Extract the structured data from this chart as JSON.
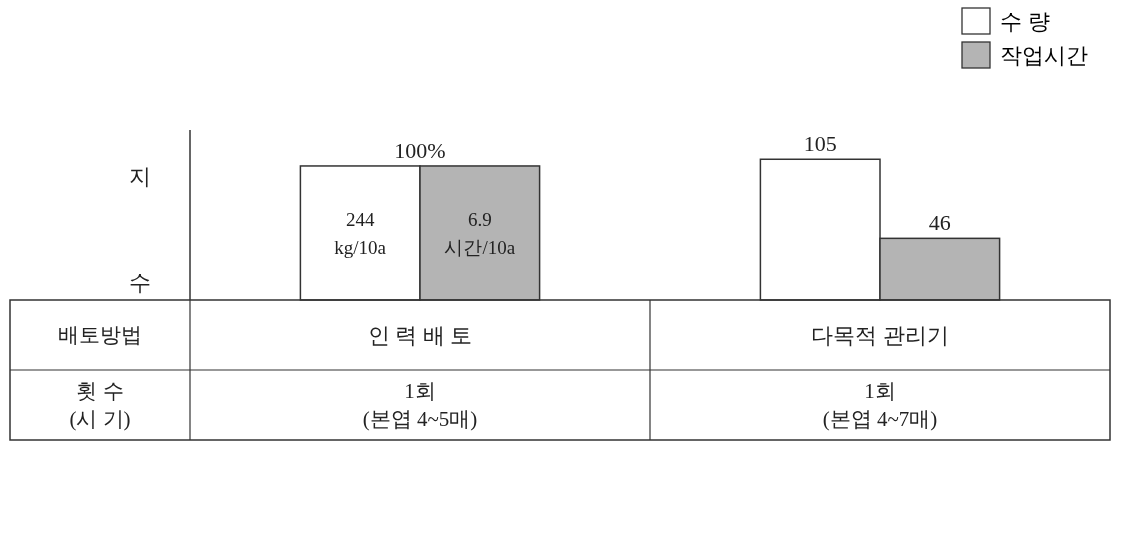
{
  "chart_data": {
    "type": "bar",
    "ylabel": "지 수",
    "xlabel": "배토방법",
    "categories": [
      "인 력 배 토",
      "다목적 관리기"
    ],
    "series": [
      {
        "name": "수 량",
        "color": "#ffffff",
        "values": [
          100,
          105
        ],
        "value_labels": [
          null,
          "105"
        ]
      },
      {
        "name": "작업시간",
        "color": "#b4b4b4",
        "values": [
          100,
          46
        ],
        "value_labels": [
          null,
          "46"
        ]
      }
    ],
    "legend": "top right",
    "annotations": [
      "횟 수\n(시 기)",
      "1회\n(본엽 4~5매)",
      "1회\n(본엽 4~7매)",
      {
        "text": "100%",
        "x": "인 력 배 토",
        "y": 100
      },
      {
        "text": "244\nkg/10a",
        "x": "인 력 배 토",
        "y": 50
      },
      {
        "text": "6.9\n시간/10a",
        "x": "인 력 배 토",
        "y": 50
      }
    ]
  }
}
